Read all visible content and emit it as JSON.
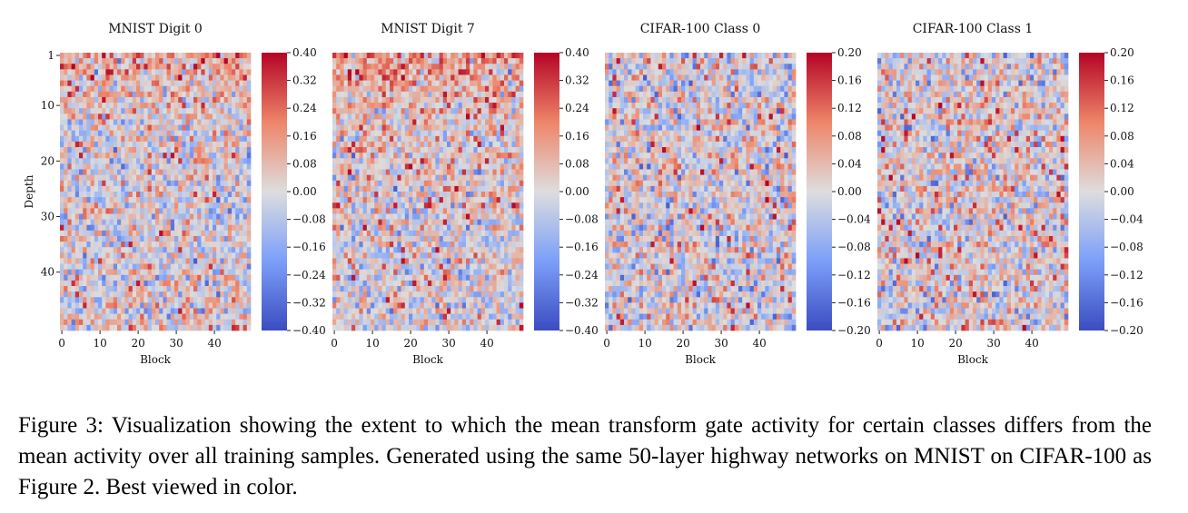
{
  "figure": {
    "caption": "Figure 3: Visualization showing the extent to which the mean transform gate activity for certain classes differs from the mean activity over all training samples. Generated using the same 50-layer highway networks on MNIST on CIFAR-100 as Figure 2. Best viewed in color."
  },
  "chart_data": [
    {
      "type": "heatmap",
      "title": "MNIST Digit 0",
      "xlabel": "Block",
      "ylabel": "Depth",
      "x_ticks": [
        "0",
        "10",
        "20",
        "30",
        "40"
      ],
      "y_ticks": [
        "1",
        "10",
        "20",
        "30",
        "40"
      ],
      "rows": 50,
      "cols": 50,
      "colorbar": {
        "min": -0.4,
        "max": 0.4,
        "ticks": [
          "0.40",
          "0.32",
          "0.24",
          "0.16",
          "0.08",
          "0.00",
          "−0.08",
          "−0.16",
          "−0.24",
          "−0.32",
          "−0.40"
        ]
      },
      "colormap": "coolwarm"
    },
    {
      "type": "heatmap",
      "title": "MNIST Digit 7",
      "xlabel": "Block",
      "ylabel": "",
      "x_ticks": [
        "0",
        "10",
        "20",
        "30",
        "40"
      ],
      "y_ticks": [],
      "rows": 50,
      "cols": 50,
      "colorbar": {
        "min": -0.4,
        "max": 0.4,
        "ticks": [
          "0.40",
          "0.32",
          "0.24",
          "0.16",
          "0.08",
          "0.00",
          "−0.08",
          "−0.16",
          "−0.24",
          "−0.32",
          "−0.40"
        ]
      },
      "colormap": "coolwarm"
    },
    {
      "type": "heatmap",
      "title": "CIFAR-100 Class 0",
      "xlabel": "Block",
      "ylabel": "",
      "x_ticks": [
        "0",
        "10",
        "20",
        "30",
        "40"
      ],
      "y_ticks": [],
      "rows": 50,
      "cols": 50,
      "colorbar": {
        "min": -0.2,
        "max": 0.2,
        "ticks": [
          "0.20",
          "0.16",
          "0.12",
          "0.08",
          "0.04",
          "0.00",
          "−0.04",
          "−0.08",
          "−0.12",
          "−0.16",
          "−0.20"
        ]
      },
      "colormap": "coolwarm"
    },
    {
      "type": "heatmap",
      "title": "CIFAR-100 Class 1",
      "xlabel": "Block",
      "ylabel": "",
      "x_ticks": [
        "0",
        "10",
        "20",
        "30",
        "40"
      ],
      "y_ticks": [],
      "rows": 50,
      "cols": 50,
      "colorbar": {
        "min": -0.2,
        "max": 0.2,
        "ticks": [
          "0.20",
          "0.16",
          "0.12",
          "0.08",
          "0.04",
          "0.00",
          "−0.04",
          "−0.08",
          "−0.12",
          "−0.16",
          "−0.20"
        ]
      },
      "colormap": "coolwarm"
    }
  ]
}
